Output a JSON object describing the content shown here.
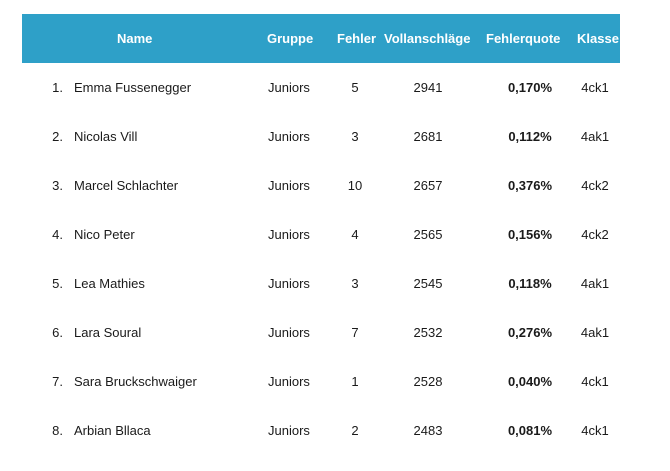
{
  "header": {
    "name": "Name",
    "gruppe": "Gruppe",
    "fehler": "Fehler",
    "vollanschlaege": "Vollanschläge",
    "fehlerquote": "Fehlerquote",
    "klasse": "Klasse"
  },
  "rows": [
    {
      "rank": "1.",
      "name": "Emma Fussenegger",
      "gruppe": "Juniors",
      "fehler": "5",
      "voll": "2941",
      "quote": "0,170%",
      "klasse": "4ck1"
    },
    {
      "rank": "2.",
      "name": "Nicolas Vill",
      "gruppe": "Juniors",
      "fehler": "3",
      "voll": "2681",
      "quote": "0,112%",
      "klasse": "4ak1"
    },
    {
      "rank": "3.",
      "name": "Marcel Schlachter",
      "gruppe": "Juniors",
      "fehler": "10",
      "voll": "2657",
      "quote": "0,376%",
      "klasse": "4ck2"
    },
    {
      "rank": "4.",
      "name": "Nico Peter",
      "gruppe": "Juniors",
      "fehler": "4",
      "voll": "2565",
      "quote": "0,156%",
      "klasse": "4ck2"
    },
    {
      "rank": "5.",
      "name": "Lea Mathies",
      "gruppe": "Juniors",
      "fehler": "3",
      "voll": "2545",
      "quote": "0,118%",
      "klasse": "4ak1"
    },
    {
      "rank": "6.",
      "name": "Lara Soural",
      "gruppe": "Juniors",
      "fehler": "7",
      "voll": "2532",
      "quote": "0,276%",
      "klasse": "4ak1"
    },
    {
      "rank": "7.",
      "name": "Sara Bruckschwaiger",
      "gruppe": "Juniors",
      "fehler": "1",
      "voll": "2528",
      "quote": "0,040%",
      "klasse": "4ck1"
    },
    {
      "rank": "8.",
      "name": "Arbian Bllaca",
      "gruppe": "Juniors",
      "fehler": "2",
      "voll": "2483",
      "quote": "0,081%",
      "klasse": "4ck1"
    }
  ],
  "colors": {
    "header_bg": "#2ea0c8",
    "header_text": "#ffffff"
  }
}
